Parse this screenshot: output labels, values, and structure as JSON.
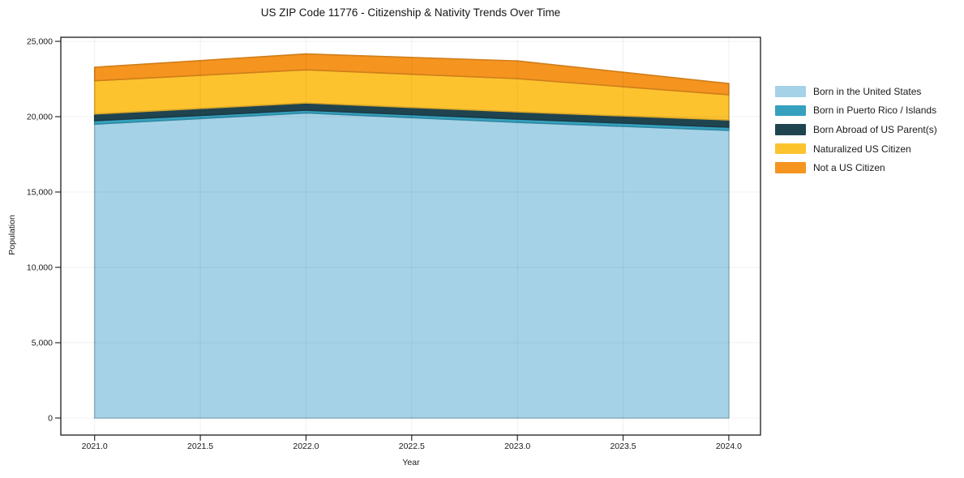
{
  "chart_data": {
    "type": "area",
    "stacked": true,
    "title": "US ZIP Code 11776 - Citizenship & Nativity Trends Over Time",
    "xlabel": "Year",
    "ylabel": "Population",
    "x": [
      2021,
      2022,
      2023,
      2024
    ],
    "series": [
      {
        "name": "Born in the United States",
        "color": "#a6d2e7",
        "values": [
          19500,
          20250,
          19620,
          19090
        ]
      },
      {
        "name": "Born in Puerto Rico / Islands",
        "color": "#36a1bf",
        "values": [
          230,
          180,
          220,
          210
        ]
      },
      {
        "name": "Born Abroad of US Parent(s)",
        "color": "#1f4450",
        "values": [
          450,
          480,
          480,
          480
        ]
      },
      {
        "name": "Naturalized US Citizen",
        "color": "#fdc32f",
        "values": [
          2200,
          2200,
          2200,
          1670
        ]
      },
      {
        "name": "Not a US Citizen",
        "color": "#f5941f",
        "values": [
          900,
          1050,
          1180,
          750
        ]
      }
    ],
    "xlim": [
      2020.84,
      2024.15
    ],
    "ylim": [
      -1130,
      25270
    ],
    "xticks": {
      "values": [
        2021.0,
        2021.5,
        2022.0,
        2022.5,
        2023.0,
        2023.5,
        2024.0
      ],
      "labels": [
        "2021.0",
        "2021.5",
        "2022.0",
        "2022.5",
        "2023.0",
        "2023.5",
        "2024.0"
      ]
    },
    "yticks": {
      "values": [
        0,
        5000,
        10000,
        15000,
        20000,
        25000
      ],
      "labels": [
        "0",
        "5,000",
        "10,000",
        "15,000",
        "20,000",
        "25,000"
      ]
    },
    "grid": true,
    "legend_position": "right-outside",
    "colors": {
      "grid": "rgba(0,0,0,0.06)",
      "spine": "#1a1a1a",
      "background": "#ffffff"
    }
  }
}
